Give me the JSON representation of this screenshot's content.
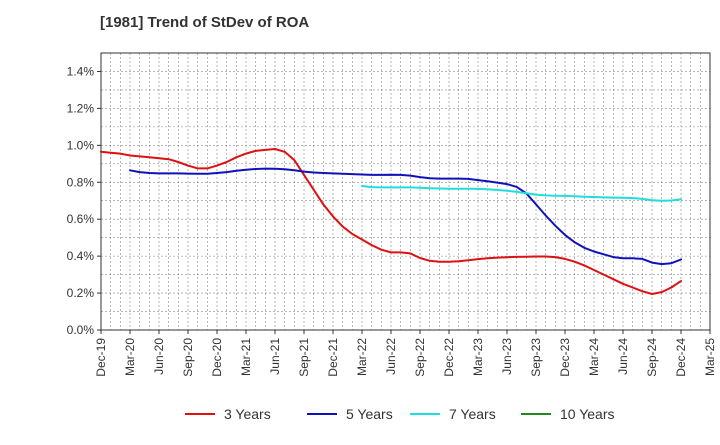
{
  "chart_data": {
    "type": "line",
    "title": "[1981]  Trend of StDev of ROA",
    "xlabel": "",
    "ylabel": "",
    "x_ticks": [
      "Dec-19",
      "Mar-20",
      "Jun-20",
      "Sep-20",
      "Dec-20",
      "Mar-21",
      "Jun-21",
      "Sep-21",
      "Dec-21",
      "Mar-22",
      "Jun-22",
      "Sep-22",
      "Dec-22",
      "Mar-23",
      "Jun-23",
      "Sep-23",
      "Dec-23",
      "Mar-24",
      "Jun-24",
      "Sep-24",
      "Dec-24",
      "Mar-25"
    ],
    "y_ticks": [
      "0.0%",
      "0.2%",
      "0.4%",
      "0.6%",
      "0.8%",
      "1.0%",
      "1.2%",
      "1.4%"
    ],
    "ylim": [
      0,
      1.5
    ],
    "y_unit": "%",
    "grid": true,
    "legend_position": "bottom",
    "series": [
      {
        "name": "3 Years",
        "color": "#dd1111",
        "points": [
          [
            "Dec-19",
            0.965
          ],
          [
            "Jan-20",
            0.96
          ],
          [
            "Feb-20",
            0.955
          ],
          [
            "Mar-20",
            0.945
          ],
          [
            "Apr-20",
            0.94
          ],
          [
            "May-20",
            0.935
          ],
          [
            "Jun-20",
            0.93
          ],
          [
            "Jul-20",
            0.925
          ],
          [
            "Aug-20",
            0.91
          ],
          [
            "Sep-20",
            0.89
          ],
          [
            "Oct-20",
            0.875
          ],
          [
            "Nov-20",
            0.875
          ],
          [
            "Dec-20",
            0.89
          ],
          [
            "Jan-21",
            0.91
          ],
          [
            "Feb-21",
            0.935
          ],
          [
            "Mar-21",
            0.955
          ],
          [
            "Apr-21",
            0.97
          ],
          [
            "May-21",
            0.975
          ],
          [
            "Jun-21",
            0.98
          ],
          [
            "Jul-21",
            0.965
          ],
          [
            "Aug-21",
            0.92
          ],
          [
            "Sep-21",
            0.84
          ],
          [
            "Oct-21",
            0.76
          ],
          [
            "Nov-21",
            0.68
          ],
          [
            "Dec-21",
            0.615
          ],
          [
            "Jan-22",
            0.56
          ],
          [
            "Feb-22",
            0.52
          ],
          [
            "Mar-22",
            0.49
          ],
          [
            "Apr-22",
            0.46
          ],
          [
            "May-22",
            0.435
          ],
          [
            "Jun-22",
            0.42
          ],
          [
            "Jul-22",
            0.42
          ],
          [
            "Aug-22",
            0.415
          ],
          [
            "Sep-22",
            0.39
          ],
          [
            "Oct-22",
            0.375
          ],
          [
            "Nov-22",
            0.37
          ],
          [
            "Dec-22",
            0.37
          ],
          [
            "Jan-23",
            0.372
          ],
          [
            "Feb-23",
            0.378
          ],
          [
            "Mar-23",
            0.384
          ],
          [
            "Apr-23",
            0.388
          ],
          [
            "May-23",
            0.392
          ],
          [
            "Jun-23",
            0.394
          ],
          [
            "Jul-23",
            0.396
          ],
          [
            "Aug-23",
            0.397
          ],
          [
            "Sep-23",
            0.398
          ],
          [
            "Oct-23",
            0.398
          ],
          [
            "Nov-23",
            0.395
          ],
          [
            "Dec-23",
            0.385
          ],
          [
            "Jan-24",
            0.37
          ],
          [
            "Feb-24",
            0.35
          ],
          [
            "Mar-24",
            0.325
          ],
          [
            "Apr-24",
            0.3
          ],
          [
            "May-24",
            0.275
          ],
          [
            "Jun-24",
            0.25
          ],
          [
            "Jul-24",
            0.23
          ],
          [
            "Aug-24",
            0.21
          ],
          [
            "Sep-24",
            0.195
          ],
          [
            "Oct-24",
            0.205
          ],
          [
            "Nov-24",
            0.23
          ],
          [
            "Dec-24",
            0.265
          ]
        ]
      },
      {
        "name": "5 Years",
        "color": "#1111bb",
        "points": [
          [
            "Mar-20",
            0.865
          ],
          [
            "Apr-20",
            0.855
          ],
          [
            "May-20",
            0.85
          ],
          [
            "Jun-20",
            0.848
          ],
          [
            "Jul-20",
            0.848
          ],
          [
            "Aug-20",
            0.848
          ],
          [
            "Sep-20",
            0.847
          ],
          [
            "Oct-20",
            0.846
          ],
          [
            "Nov-20",
            0.846
          ],
          [
            "Dec-20",
            0.85
          ],
          [
            "Jan-21",
            0.855
          ],
          [
            "Feb-21",
            0.862
          ],
          [
            "Mar-21",
            0.868
          ],
          [
            "Apr-21",
            0.872
          ],
          [
            "May-21",
            0.874
          ],
          [
            "Jun-21",
            0.873
          ],
          [
            "Jul-21",
            0.87
          ],
          [
            "Aug-21",
            0.865
          ],
          [
            "Sep-21",
            0.858
          ],
          [
            "Oct-21",
            0.853
          ],
          [
            "Nov-21",
            0.85
          ],
          [
            "Dec-21",
            0.848
          ],
          [
            "Jan-22",
            0.846
          ],
          [
            "Feb-22",
            0.844
          ],
          [
            "Mar-22",
            0.842
          ],
          [
            "Apr-22",
            0.84
          ],
          [
            "May-22",
            0.84
          ],
          [
            "Jun-22",
            0.841
          ],
          [
            "Jul-22",
            0.84
          ],
          [
            "Aug-22",
            0.836
          ],
          [
            "Sep-22",
            0.828
          ],
          [
            "Oct-22",
            0.822
          ],
          [
            "Nov-22",
            0.82
          ],
          [
            "Dec-22",
            0.82
          ],
          [
            "Jan-23",
            0.82
          ],
          [
            "Feb-23",
            0.818
          ],
          [
            "Mar-23",
            0.812
          ],
          [
            "Apr-23",
            0.805
          ],
          [
            "May-23",
            0.798
          ],
          [
            "Jun-23",
            0.79
          ],
          [
            "Jul-23",
            0.775
          ],
          [
            "Aug-23",
            0.74
          ],
          [
            "Sep-23",
            0.68
          ],
          [
            "Oct-23",
            0.62
          ],
          [
            "Nov-23",
            0.565
          ],
          [
            "Dec-23",
            0.515
          ],
          [
            "Jan-24",
            0.475
          ],
          [
            "Feb-24",
            0.445
          ],
          [
            "Mar-24",
            0.425
          ],
          [
            "Apr-24",
            0.41
          ],
          [
            "May-24",
            0.395
          ],
          [
            "Jun-24",
            0.388
          ],
          [
            "Jul-24",
            0.388
          ],
          [
            "Aug-24",
            0.385
          ],
          [
            "Sep-24",
            0.365
          ],
          [
            "Oct-24",
            0.357
          ],
          [
            "Nov-24",
            0.362
          ],
          [
            "Dec-24",
            0.382
          ]
        ]
      },
      {
        "name": "7 Years",
        "color": "#22dddd",
        "points": [
          [
            "Mar-22",
            0.78
          ],
          [
            "Apr-22",
            0.774
          ],
          [
            "May-22",
            0.772
          ],
          [
            "Jun-22",
            0.772
          ],
          [
            "Jul-22",
            0.772
          ],
          [
            "Aug-22",
            0.772
          ],
          [
            "Sep-22",
            0.77
          ],
          [
            "Oct-22",
            0.768
          ],
          [
            "Nov-22",
            0.766
          ],
          [
            "Dec-22",
            0.765
          ],
          [
            "Jan-23",
            0.765
          ],
          [
            "Feb-23",
            0.765
          ],
          [
            "Mar-23",
            0.764
          ],
          [
            "Apr-23",
            0.762
          ],
          [
            "May-23",
            0.758
          ],
          [
            "Jun-23",
            0.754
          ],
          [
            "Jul-23",
            0.748
          ],
          [
            "Aug-23",
            0.74
          ],
          [
            "Sep-23",
            0.733
          ],
          [
            "Oct-23",
            0.729
          ],
          [
            "Nov-23",
            0.727
          ],
          [
            "Dec-23",
            0.726
          ],
          [
            "Jan-24",
            0.724
          ],
          [
            "Feb-24",
            0.722
          ],
          [
            "Mar-24",
            0.72
          ],
          [
            "Apr-24",
            0.718
          ],
          [
            "May-24",
            0.717
          ],
          [
            "Jun-24",
            0.716
          ],
          [
            "Jul-24",
            0.714
          ],
          [
            "Aug-24",
            0.71
          ],
          [
            "Sep-24",
            0.703
          ],
          [
            "Oct-24",
            0.7
          ],
          [
            "Nov-24",
            0.701
          ],
          [
            "Dec-24",
            0.708
          ]
        ]
      },
      {
        "name": "10 Years",
        "color": "#228822",
        "points": []
      }
    ]
  }
}
